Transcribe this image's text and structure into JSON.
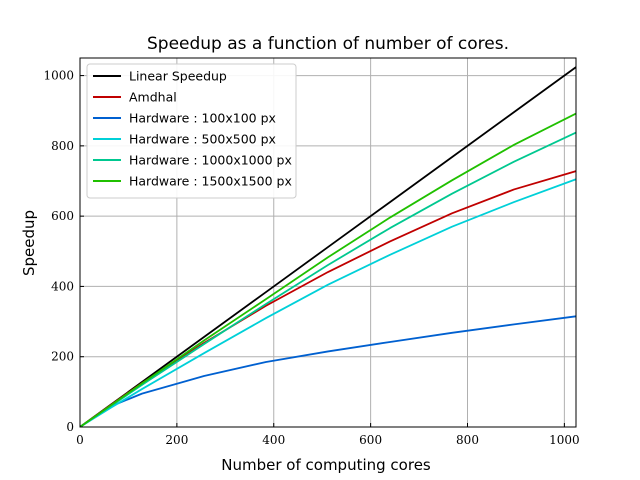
{
  "chart_data": {
    "type": "line",
    "title": "Speedup as a function of number of cores.",
    "xlabel": "Number of computing cores",
    "ylabel": "Speedup",
    "xlim": [
      0,
      1024
    ],
    "ylim": [
      0,
      1050
    ],
    "xticks": [
      0,
      200,
      400,
      600,
      800,
      1000
    ],
    "yticks": [
      0,
      200,
      400,
      600,
      800,
      1000
    ],
    "grid": true,
    "legend_position": "top-left",
    "x": [
      1,
      64,
      128,
      256,
      384,
      512,
      640,
      768,
      896,
      1024
    ],
    "series": [
      {
        "name": "Linear Speedup",
        "color": "#000000",
        "values": [
          1,
          64,
          128,
          256,
          384,
          512,
          640,
          768,
          896,
          1024
        ]
      },
      {
        "name": "Amdhal",
        "color": "#c00000",
        "values": [
          1,
          63,
          125,
          239,
          345,
          441,
          528,
          608,
          676,
          728
        ]
      },
      {
        "name": "Hardware : 100x100 px",
        "color": "#0060d0",
        "values": [
          1,
          59,
          95,
          145,
          185,
          215,
          242,
          268,
          292,
          315
        ]
      },
      {
        "name": "Hardware : 500x500 px",
        "color": "#00d0d8",
        "values": [
          1,
          55,
          108,
          210,
          310,
          405,
          490,
          570,
          640,
          705
        ]
      },
      {
        "name": "Hardware : 1000x1000 px",
        "color": "#00c890",
        "values": [
          1,
          60,
          120,
          236,
          350,
          461,
          566,
          664,
          755,
          838
        ]
      },
      {
        "name": "Hardware : 1500x1500 px",
        "color": "#20c000",
        "values": [
          1,
          62,
          124,
          246,
          364,
          483,
          596,
          702,
          803,
          892
        ]
      }
    ]
  }
}
